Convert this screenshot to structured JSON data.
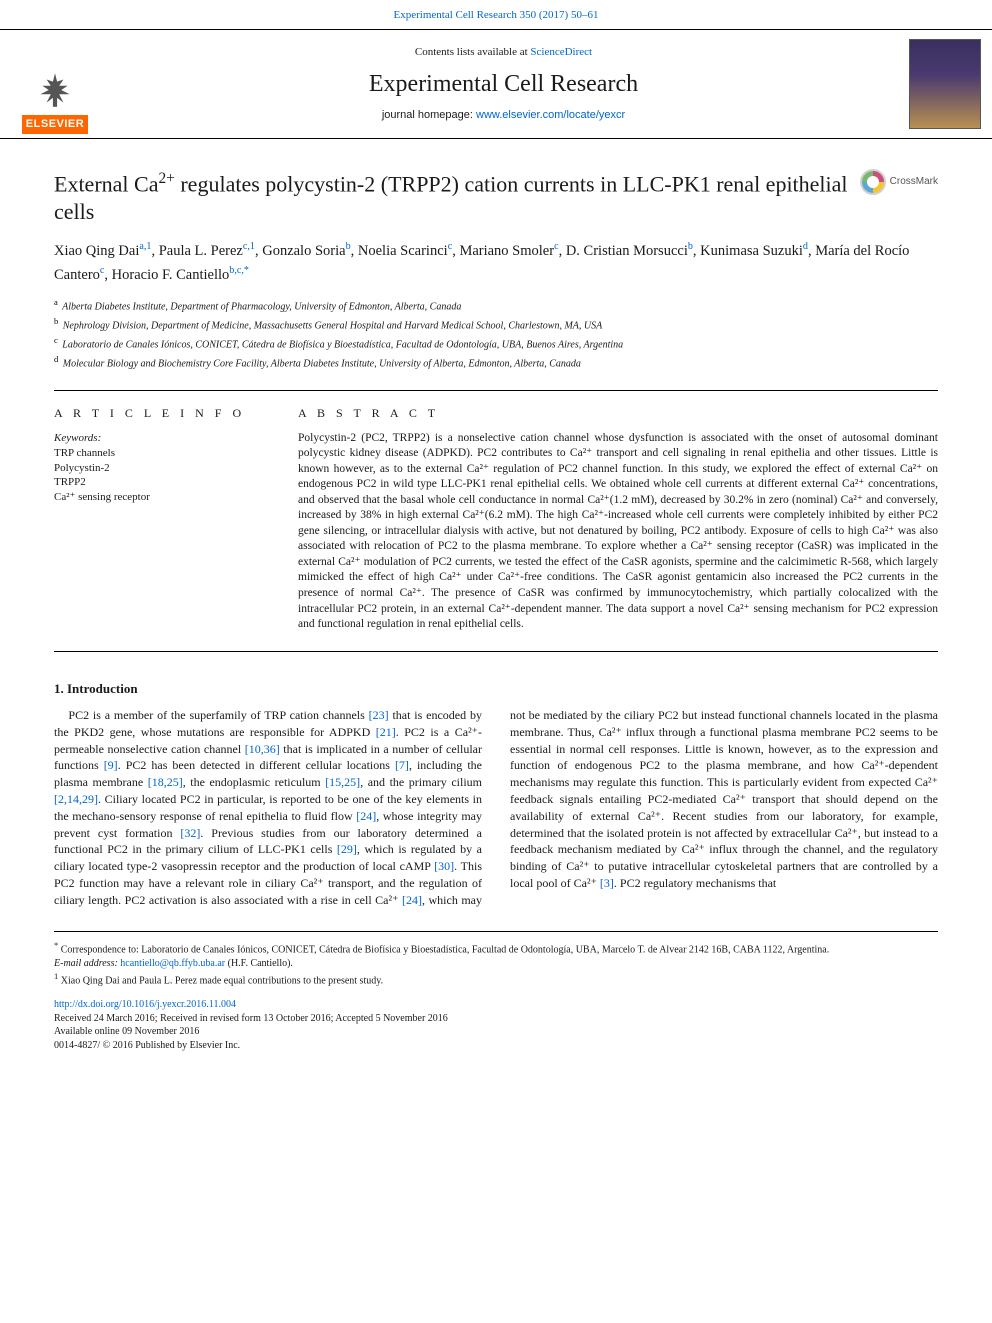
{
  "header": {
    "citation": "Experimental Cell Research 350 (2017) 50–61",
    "contents_prefix": "Contents lists available at ",
    "contents_link": "ScienceDirect",
    "journal_name": "Experimental Cell Research",
    "homepage_prefix": "journal homepage: ",
    "homepage_url": "www.elsevier.com/locate/yexcr",
    "publisher_logo": "ELSEVIER",
    "crossmark_label": "CrossMark"
  },
  "article": {
    "title_pre": "External Ca",
    "title_sup": "2+",
    "title_post": " regulates polycystin-2 (TRPP2) cation currents in LLC-PK1 renal epithelial cells",
    "authors": [
      {
        "name": "Xiao Qing Dai",
        "aff": "a,1"
      },
      {
        "name": "Paula L. Perez",
        "aff": "c,1"
      },
      {
        "name": "Gonzalo Soria",
        "aff": "b"
      },
      {
        "name": "Noelia Scarinci",
        "aff": "c"
      },
      {
        "name": "Mariano Smoler",
        "aff": "c"
      },
      {
        "name": "D. Cristian Morsucci",
        "aff": "b"
      },
      {
        "name": "Kunimasa Suzuki",
        "aff": "d"
      },
      {
        "name": "María del Rocío Cantero",
        "aff": "c"
      },
      {
        "name": "Horacio F. Cantiello",
        "aff": "b,c,*"
      }
    ],
    "affiliations": [
      {
        "label": "a",
        "text": "Alberta Diabetes Institute, Department of Pharmacology, University of Edmonton, Alberta, Canada"
      },
      {
        "label": "b",
        "text": "Nephrology Division, Department of Medicine, Massachusetts General Hospital and Harvard Medical School, Charlestown, MA, USA"
      },
      {
        "label": "c",
        "text": "Laboratorio de Canales Iónicos, CONICET, Cátedra de Biofísica y Bioestadística, Facultad de Odontología, UBA, Buenos Aires, Argentina"
      },
      {
        "label": "d",
        "text": "Molecular Biology and Biochemistry Core Facility, Alberta Diabetes Institute, University of Alberta, Edmonton, Alberta, Canada"
      }
    ]
  },
  "info": {
    "section_head": "A R T I C L E  I N F O",
    "kw_label": "Keywords:",
    "keywords": [
      "TRP channels",
      "Polycystin-2",
      "TRPP2",
      "Ca²⁺ sensing receptor"
    ]
  },
  "abstract": {
    "section_head": "A B S T R A C T",
    "text": "Polycystin-2 (PC2, TRPP2) is a nonselective cation channel whose dysfunction is associated with the onset of autosomal dominant polycystic kidney disease (ADPKD). PC2 contributes to Ca²⁺ transport and cell signaling in renal epithelia and other tissues. Little is known however, as to the external Ca²⁺ regulation of PC2 channel function. In this study, we explored the effect of external Ca²⁺ on endogenous PC2 in wild type LLC-PK1 renal epithelial cells. We obtained whole cell currents at different external Ca²⁺ concentrations, and observed that the basal whole cell conductance in normal Ca²⁺(1.2 mM), decreased by 30.2% in zero (nominal) Ca²⁺ and conversely, increased by 38% in high external Ca²⁺(6.2 mM). The high Ca²⁺-increased whole cell currents were completely inhibited by either PC2 gene silencing, or intracellular dialysis with active, but not denatured by boiling, PC2 antibody. Exposure of cells to high Ca²⁺ was also associated with relocation of PC2 to the plasma membrane. To explore whether a Ca²⁺ sensing receptor (CaSR) was implicated in the external Ca²⁺ modulation of PC2 currents, we tested the effect of the CaSR agonists, spermine and the calcimimetic R-568, which largely mimicked the effect of high Ca²⁺ under Ca²⁺-free conditions. The CaSR agonist gentamicin also increased the PC2 currents in the presence of normal Ca²⁺. The presence of CaSR was confirmed by immunocytochemistry, which partially colocalized with the intracellular PC2 protein, in an external Ca²⁺-dependent manner. The data support a novel Ca²⁺ sensing mechanism for PC2 expression and functional regulation in renal epithelial cells."
  },
  "introduction": {
    "heading": "1. Introduction",
    "body_html": "PC2 is a member of the superfamily of TRP cation channels <a class='ref' href='#'>[23]</a> that is encoded by the PKD2 gene, whose mutations are responsible for ADPKD <a class='ref' href='#'>[21]</a>. PC2 is a Ca²⁺-permeable nonselective cation channel <a class='ref' href='#'>[10,36]</a> that is implicated in a number of cellular functions <a class='ref' href='#'>[9]</a>. PC2 has been detected in different cellular locations <a class='ref' href='#'>[7]</a>, including the plasma membrane <a class='ref' href='#'>[18,25]</a>, the endoplasmic reticulum <a class='ref' href='#'>[15,25]</a>, and the primary cilium <a class='ref' href='#'>[2,14,29]</a>. Ciliary located PC2 in particular, is reported to be one of the key elements in the mechano-sensory response of renal epithelia to fluid flow <a class='ref' href='#'>[24]</a>, whose integrity may prevent cyst formation <a class='ref' href='#'>[32]</a>. Previous studies from our laboratory determined a functional PC2 in the primary cilium of LLC-PK1 cells <a class='ref' href='#'>[29]</a>, which is regulated by a ciliary located type-2 vasopressin receptor and the production of local cAMP <a class='ref' href='#'>[30]</a>. This PC2 function may have a relevant role in ciliary Ca²⁺ transport, and the regulation of ciliary length. PC2 activation is also associated with a rise in cell Ca²⁺ <a class='ref' href='#'>[24]</a>, which may not be mediated by the ciliary PC2 but instead functional channels located in the plasma membrane. Thus, Ca²⁺ influx through a functional plasma membrane PC2 seems to be essential in normal cell responses. Little is known, however, as to the expression and function of endogenous PC2 to the plasma membrane, and how Ca²⁺-dependent mechanisms may regulate this function. This is particularly evident from expected Ca²⁺ feedback signals entailing PC2-mediated Ca²⁺ transport that should depend on the availability of external Ca²⁺. Recent studies from our laboratory, for example, determined that the isolated protein is not affected by extracellular Ca²⁺, but instead to a feedback mechanism mediated by Ca²⁺ influx through the channel, and the regulatory binding of Ca²⁺ to putative intracellular cytoskeletal partners that are controlled by a local pool of Ca²⁺ <a class='ref' href='#'>[3]</a>. PC2 regulatory mechanisms that"
  },
  "footnotes": {
    "corr_marker": "*",
    "corr_text": " Correspondence to: Laboratorio de Canales Iónicos, CONICET, Cátedra de Biofísica y Bioestadística, Facultad de Odontología, UBA, Marcelo T. de Alvear 2142 16B, CABA 1122, Argentina.",
    "email_label": "E-mail address: ",
    "email": "hcantiello@qb.ffyb.uba.ar",
    "email_author": " (H.F. Cantiello).",
    "note1_marker": "1",
    "note1_text": " Xiao Qing Dai and Paula L. Perez made equal contributions to the present study."
  },
  "doi": {
    "url": "http://dx.doi.org/10.1016/j.yexcr.2016.11.004",
    "received": "Received 24 March 2016; Received in revised form 13 October 2016; Accepted 5 November 2016",
    "online": "Available online 09 November 2016",
    "copyright": "0014-4827/ © 2016 Published by Elsevier Inc."
  },
  "colors": {
    "link": "#0066cc",
    "elsevier_orange": "#ff6600",
    "text": "#1a1a1a"
  }
}
